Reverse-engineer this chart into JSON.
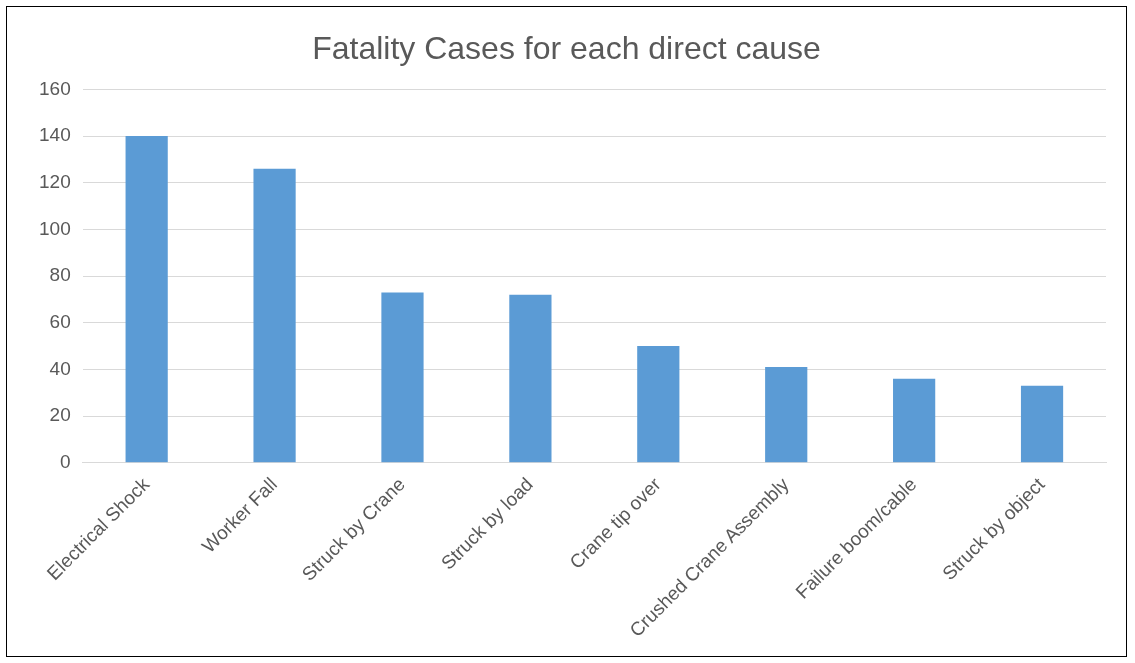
{
  "chart_data": {
    "type": "bar",
    "title": "Fatality Cases for each direct cause",
    "categories": [
      "Electrical Shock",
      "Worker Fall",
      "Struck by Crane",
      "Struck by load",
      "Crane tip over",
      "Crushed Crane Assembly",
      "Failure boom/cable",
      "Struck by object"
    ],
    "values": [
      140,
      126,
      73,
      72,
      50,
      41,
      36,
      33
    ],
    "color": "#5b9bd5",
    "ylim": [
      0,
      160
    ],
    "yticks": [
      0,
      20,
      40,
      60,
      80,
      100,
      120,
      140,
      160
    ],
    "grid": "y"
  }
}
